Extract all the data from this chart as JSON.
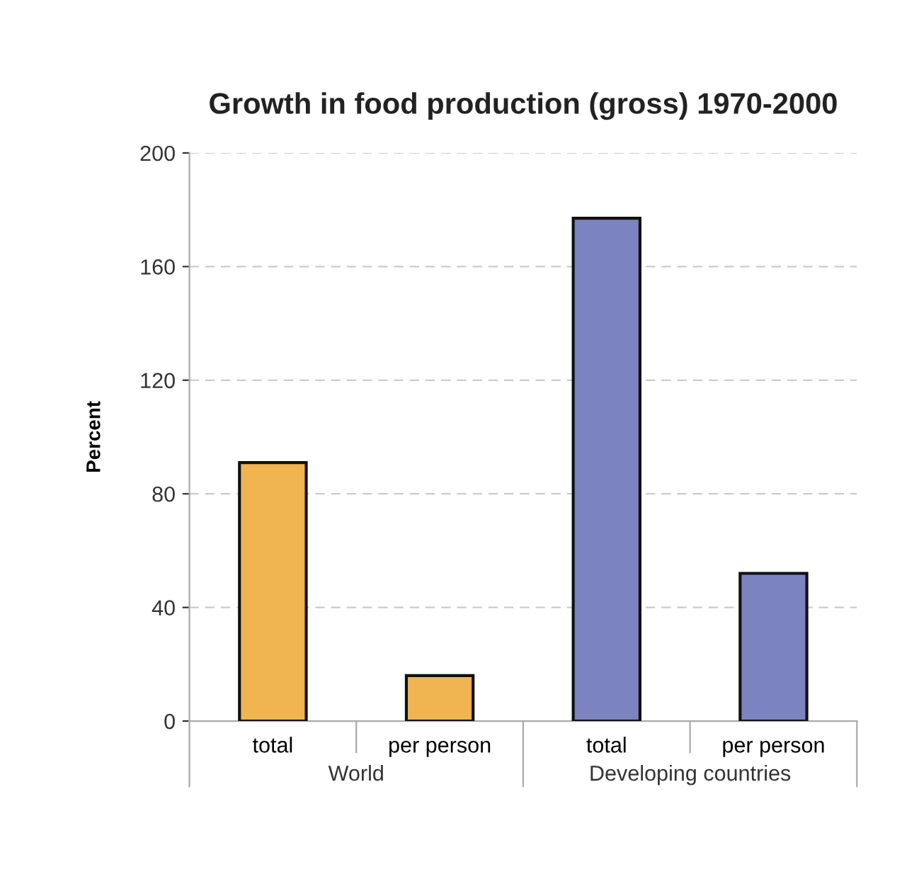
{
  "chart_data": {
    "type": "bar",
    "title": "Growth in food production (gross) 1970-2000",
    "ylabel": "Percent",
    "categories": [
      "total",
      "per person",
      "total",
      "per person"
    ],
    "values": [
      91,
      16,
      177,
      52
    ],
    "colors": [
      "#f0b450",
      "#f0b450",
      "#7b83c0",
      "#7b83c0"
    ],
    "ylim": [
      0,
      200
    ],
    "yticks": [
      0,
      40,
      80,
      120,
      160,
      200
    ],
    "grid": "y",
    "annotations": [
      "World",
      "Developing countries"
    ]
  }
}
